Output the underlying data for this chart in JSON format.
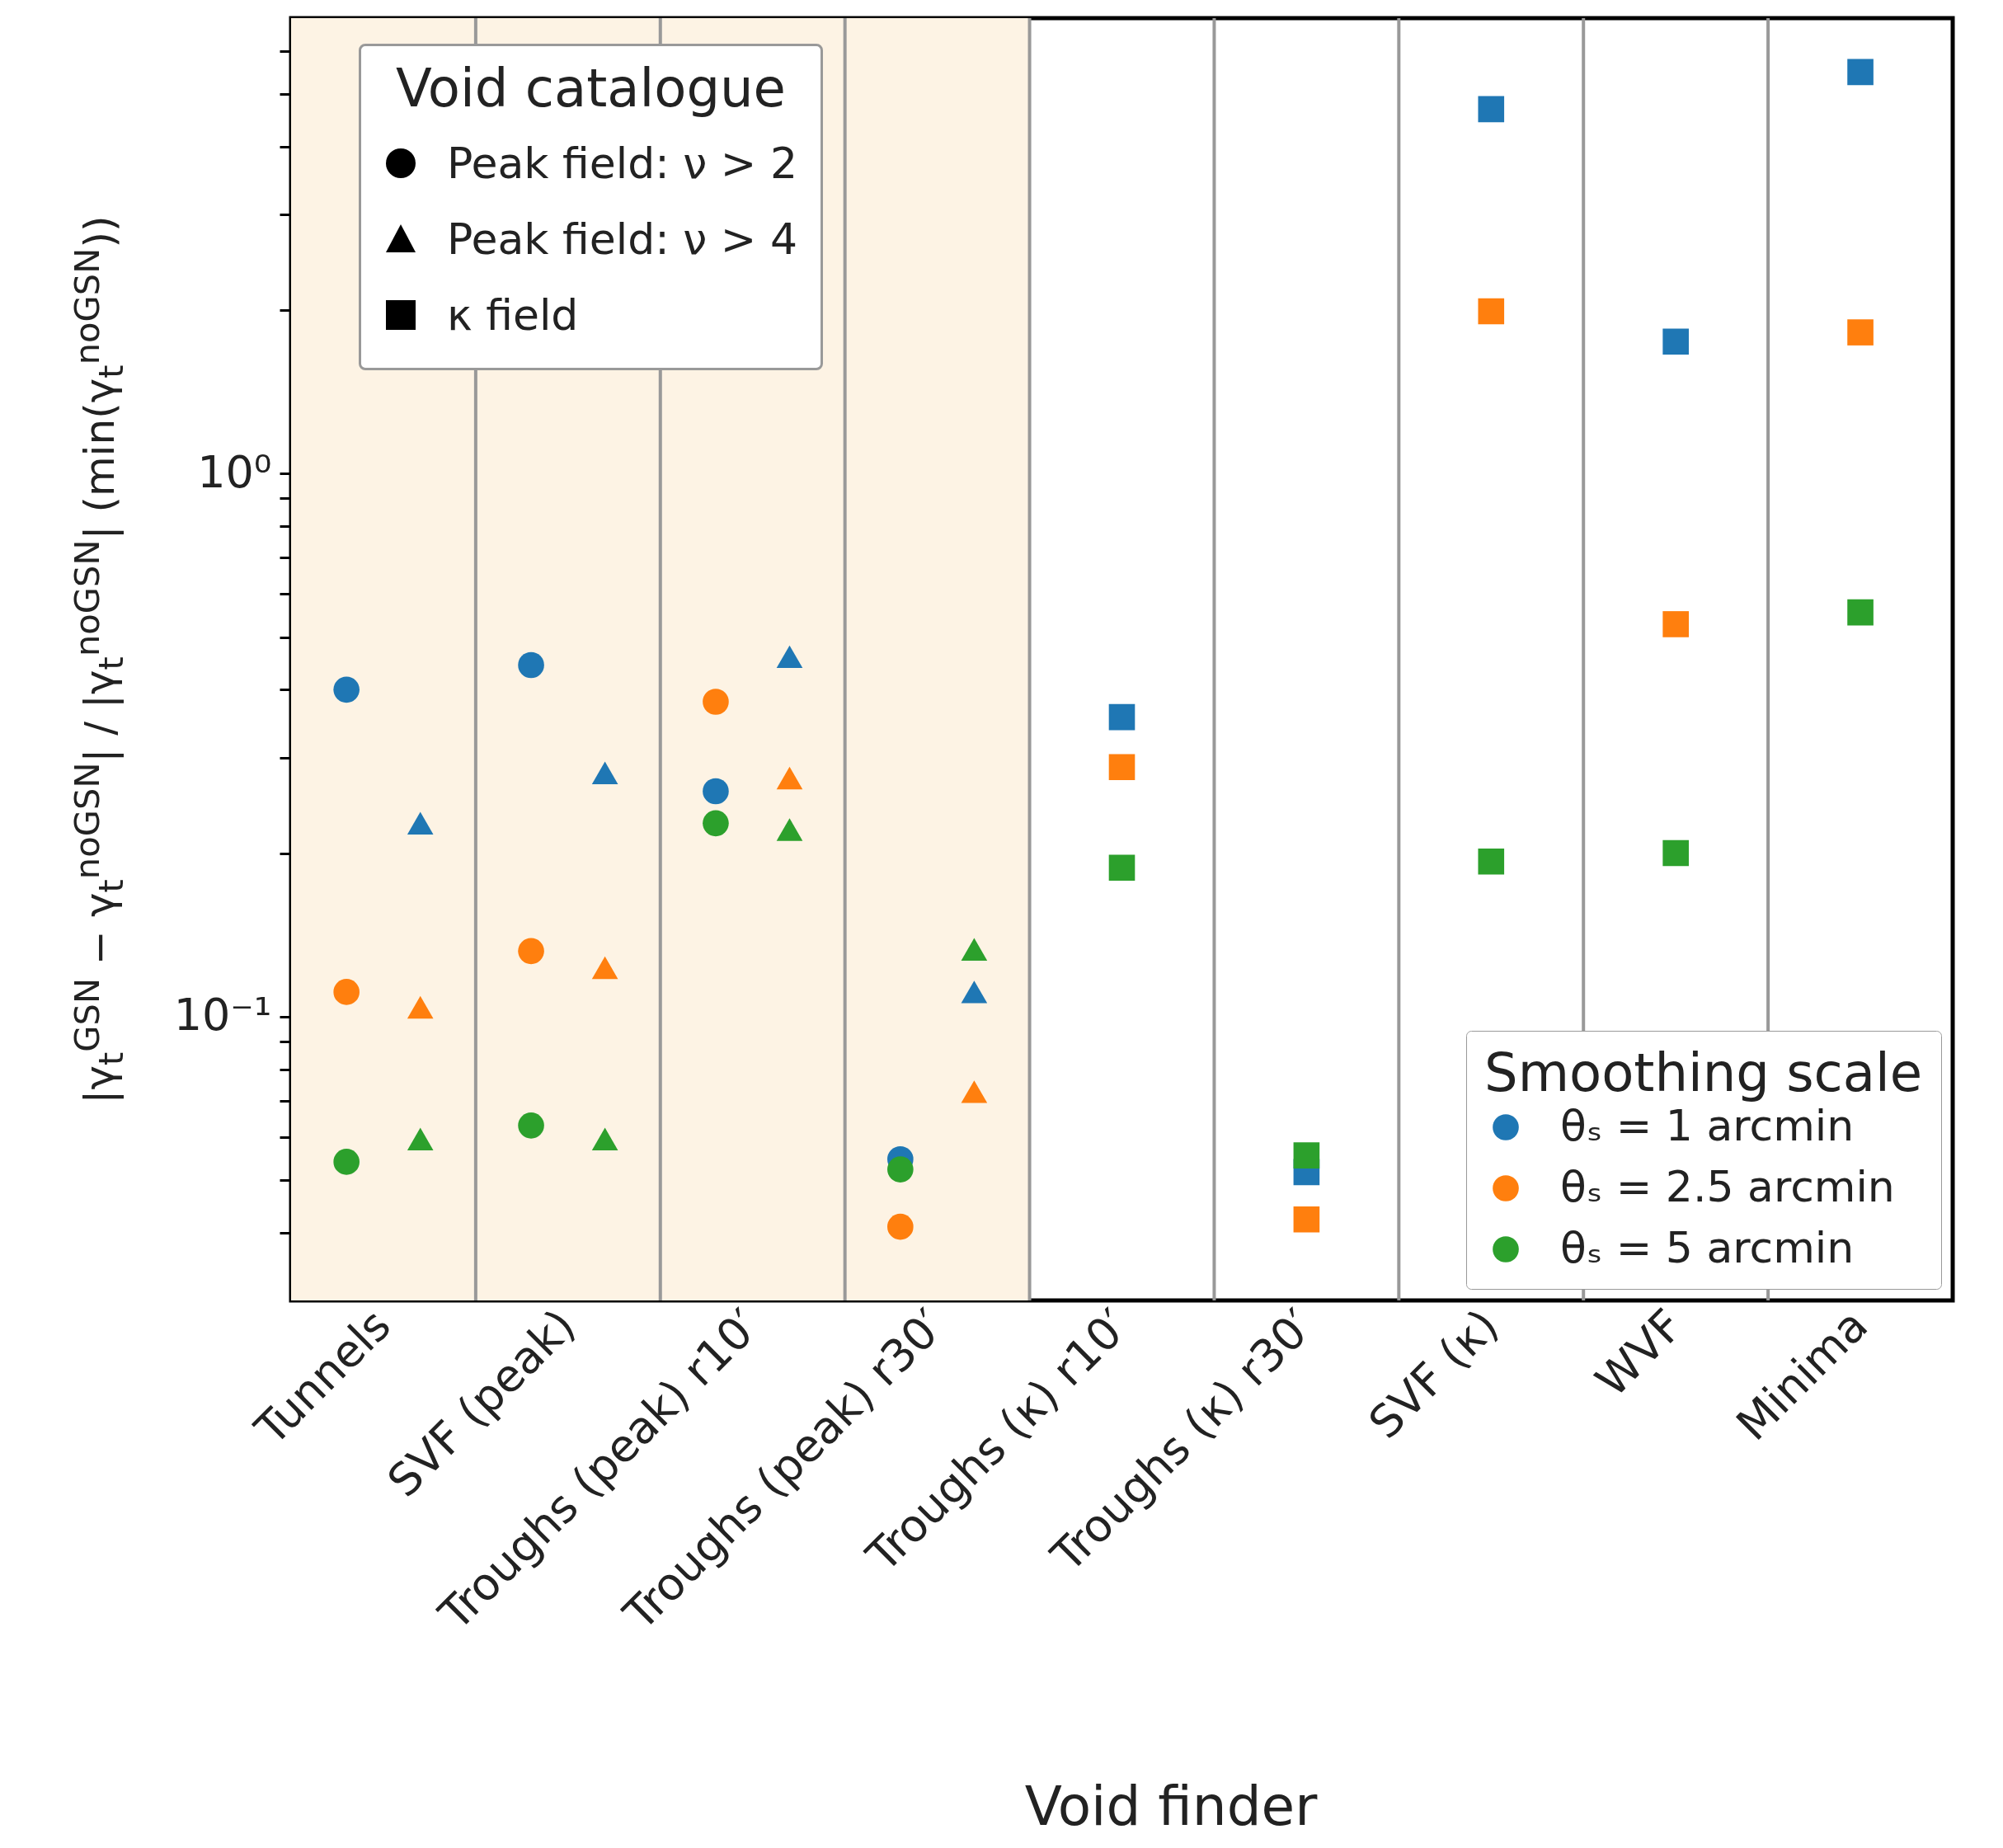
{
  "chart_data": {
    "type": "scatter",
    "xlabel": "Void finder",
    "ylabel": "|γ$_{t}$$^{GSN}$ − γ$_{t}$$^{noGSN}$| / |γ$_{t}$$^{noGSN}$| (min(γ$_{t}$$^{noGSN}$))",
    "legend_title": [
      "Void catalogue",
      "Smoothing scale"
    ],
    "annotations": [
      "Peak field: ν > 2",
      "Peak field: ν > 4",
      "κ field"
    ],
    "legend": {
      "marker": "top left",
      "color": "bottom right"
    },
    "categories": [
      "Tunnels",
      "SVF (peak)",
      "Troughs (peak) r10′",
      "Troughs (peak) r30′",
      "Troughs (κ) r10′",
      "Troughs (κ) r30′",
      "SVF (κ)",
      "WVF",
      "Minima"
    ],
    "log": true,
    "grid": "x",
    "ylim": [
      0.03,
      6.9
    ],
    "yticks": [
      {
        "value": 0.04,
        "label": null
      },
      {
        "value": 0.05,
        "label": null
      },
      {
        "value": 0.06,
        "label": null
      },
      {
        "value": 0.07,
        "label": null
      },
      {
        "value": 0.08,
        "label": null
      },
      {
        "value": 0.09,
        "label": null
      },
      {
        "value": 0.1,
        "label": "10⁻¹"
      },
      {
        "value": 0.2,
        "label": null
      },
      {
        "value": 0.3,
        "label": null
      },
      {
        "value": 0.4,
        "label": null
      },
      {
        "value": 0.5,
        "label": null
      },
      {
        "value": 0.6,
        "label": null
      },
      {
        "value": 0.7,
        "label": null
      },
      {
        "value": 0.8,
        "label": null
      },
      {
        "value": 0.9,
        "label": null
      },
      {
        "value": 1,
        "label": "10⁰"
      },
      {
        "value": 2,
        "label": null
      },
      {
        "value": 3,
        "label": null
      },
      {
        "value": 4,
        "label": null
      },
      {
        "value": 5,
        "label": null
      },
      {
        "value": 6,
        "label": null
      }
    ],
    "bands": [
      {
        "axis": "x",
        "from": "Tunnels",
        "to": "Troughs (peak) r30′",
        "color": "#fdf3e4"
      }
    ],
    "series": [
      {
        "name": "θₛ = 1 arcmin",
        "marker": "circle",
        "color": "#1f77b4",
        "values": [
          0.4,
          0.444,
          0.26,
          0.0546,
          null,
          null,
          null,
          null,
          null
        ]
      },
      {
        "name": "θₛ = 2.5 arcmin",
        "marker": "circle",
        "color": "#ff7f0e",
        "values": [
          0.111,
          0.132,
          0.38,
          0.041,
          null,
          null,
          null,
          null,
          null
        ]
      },
      {
        "name": "θₛ = 5 arcmin",
        "marker": "circle",
        "color": "#2ca02c",
        "values": [
          0.054,
          0.063,
          0.227,
          0.0523,
          null,
          null,
          null,
          null,
          null
        ]
      },
      {
        "marker": "triangle",
        "color": "#1f77b4",
        "values": [
          0.227,
          0.281,
          0.46,
          0.111,
          null,
          null,
          null,
          null,
          null
        ]
      },
      {
        "marker": "triangle",
        "color": "#ff7f0e",
        "values": [
          0.104,
          0.123,
          0.275,
          0.0727,
          null,
          null,
          null,
          null,
          null
        ]
      },
      {
        "marker": "triangle",
        "color": "#2ca02c",
        "values": [
          0.0595,
          0.0595,
          0.221,
          0.133,
          null,
          null,
          null,
          null,
          null
        ]
      },
      {
        "marker": "square",
        "color": "#1f77b4",
        "values": [
          null,
          null,
          null,
          null,
          0.356,
          0.0517,
          4.69,
          1.75,
          5.49
        ]
      },
      {
        "marker": "square",
        "color": "#ff7f0e",
        "values": [
          null,
          null,
          null,
          null,
          0.288,
          0.0423,
          1.99,
          0.528,
          1.82
        ]
      },
      {
        "marker": "square",
        "color": "#2ca02c",
        "values": [
          null,
          null,
          null,
          null,
          0.188,
          0.0555,
          0.193,
          0.2,
          0.555
        ]
      }
    ]
  }
}
